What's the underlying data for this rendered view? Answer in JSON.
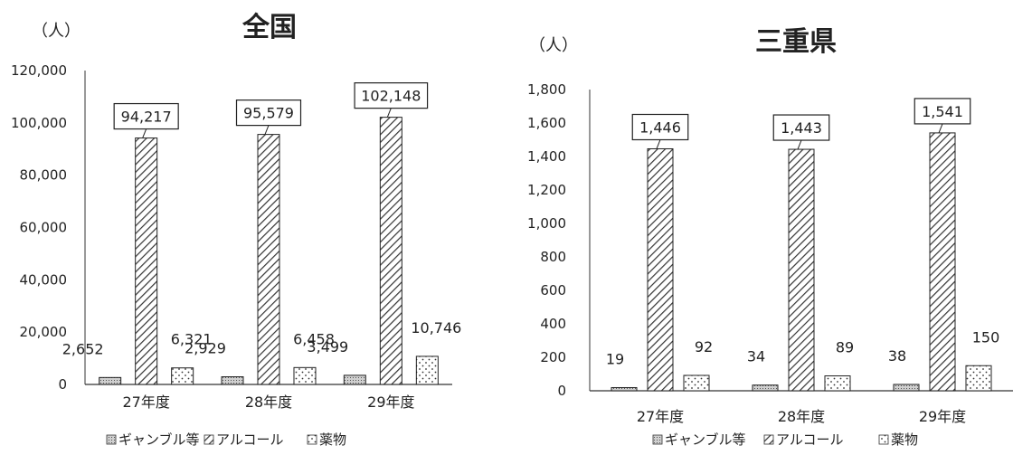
{
  "legend_labels": [
    "ギャンブル等",
    "アルコール",
    "薬物"
  ],
  "series_styles": [
    "gamble",
    "alcohol",
    "drug"
  ],
  "chart_data": [
    {
      "type": "bar",
      "title": "全国",
      "unit_label": "（人）",
      "categories": [
        "27年度",
        "28年度",
        "29年度"
      ],
      "ylim": [
        0,
        120000
      ],
      "yticks": [
        0,
        20000,
        40000,
        60000,
        80000,
        100000,
        120000
      ],
      "ytick_labels": [
        "0",
        "20,000",
        "40,000",
        "60,000",
        "80,000",
        "100,000",
        "120,000"
      ],
      "series": [
        {
          "name": "ギャンブル等",
          "values": [
            2652,
            2929,
            3499
          ],
          "value_labels": [
            "2,652",
            "2,929",
            "3,499"
          ]
        },
        {
          "name": "アルコール",
          "values": [
            94217,
            95579,
            102148
          ],
          "value_labels": [
            "94,217",
            "95,579",
            "102,148"
          ]
        },
        {
          "name": "薬物",
          "values": [
            6321,
            6458,
            10746
          ],
          "value_labels": [
            "6,321",
            "6,458",
            "10,746"
          ]
        }
      ],
      "legend_position": "bottom"
    },
    {
      "type": "bar",
      "title": "三重県",
      "unit_label": "（人）",
      "categories": [
        "27年度",
        "28年度",
        "29年度"
      ],
      "ylim": [
        0,
        1800
      ],
      "yticks": [
        0,
        200,
        400,
        600,
        800,
        1000,
        1200,
        1400,
        1600,
        1800
      ],
      "ytick_labels": [
        "0",
        "200",
        "400",
        "600",
        "800",
        "1,000",
        "1,200",
        "1,400",
        "1,600",
        "1,800"
      ],
      "series": [
        {
          "name": "ギャンブル等",
          "values": [
            19,
            34,
            38
          ],
          "value_labels": [
            "19",
            "34",
            "38"
          ]
        },
        {
          "name": "アルコール",
          "values": [
            1446,
            1443,
            1541
          ],
          "value_labels": [
            "1,446",
            "1,443",
            "1,541"
          ]
        },
        {
          "name": "薬物",
          "values": [
            92,
            89,
            150
          ],
          "value_labels": [
            "92",
            "89",
            "150"
          ]
        }
      ],
      "legend_position": "bottom"
    }
  ]
}
